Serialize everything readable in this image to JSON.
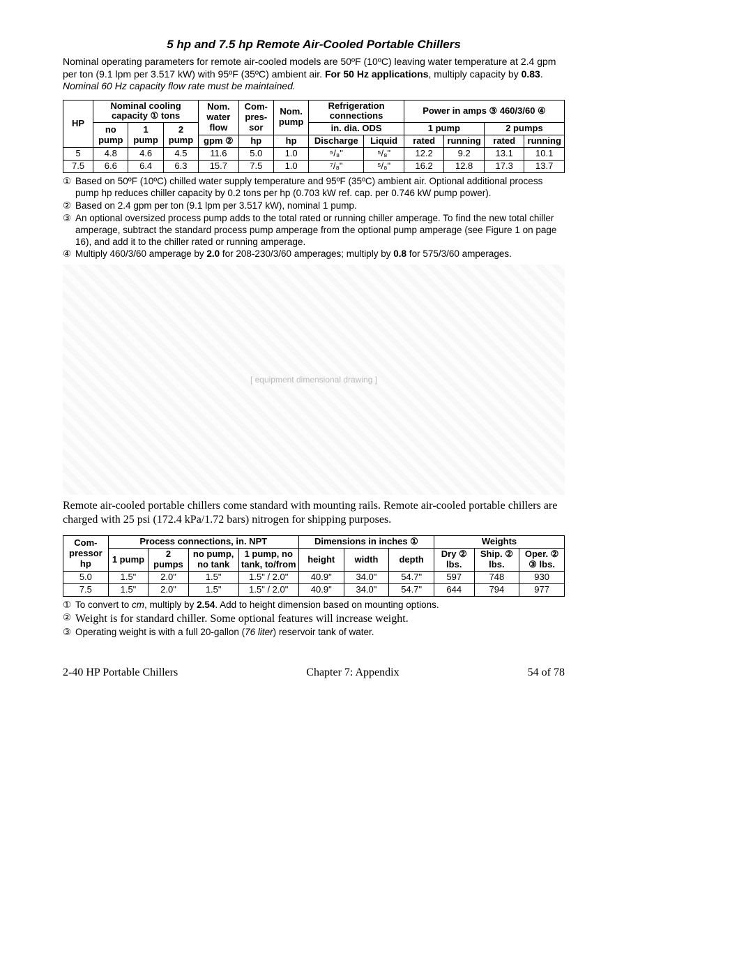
{
  "title": "5 hp and 7.5 hp Remote Air-Cooled Portable Chillers",
  "intro_html": "Nominal operating parameters for remote air-cooled models are 50ºF (10ºC) leaving water temperature at 2.4 gpm per ton (9.1 lpm per 3.517 kW) with 95ºF (35ºC) ambient air. <b>For 50 Hz applications</b>, multiply capacity by <b>0.83</b>. <span class=\"ital\">Nominal 60 Hz capacity flow rate must be maintained.</span>",
  "t1": {
    "top": {
      "hp": "HP",
      "nom_cooling": "Nominal cooling capacity ① tons",
      "nom_water": "Nom. water flow",
      "compressor": "Com- pres- sor",
      "nom_pump": "Nom. pump",
      "refrig": "Refrigeration connections",
      "power": "Power in amps ③ 460/3/60 ④"
    },
    "sub": {
      "no_pump": "no pump",
      "one_pump": "1 pump",
      "two_pump": "2 pump",
      "gpm": "gpm ②",
      "hp1": "hp",
      "hp2": "hp",
      "in_dia": "in. dia. ODS",
      "discharge": "Discharge",
      "liquid": "Liquid",
      "pump1": "1 pump",
      "pumps2": "2 pumps",
      "rated": "rated",
      "running": "running"
    },
    "rows": [
      {
        "hp": "5",
        "np": "4.8",
        "p1": "4.6",
        "p2": "4.5",
        "gpm": "11.6",
        "chp": "5.0",
        "php": "1.0",
        "disch": "⁵/₈\"",
        "liq": "⁵/₈\"",
        "r1": "12.2",
        "ru1": "9.2",
        "r2": "13.1",
        "ru2": "10.1"
      },
      {
        "hp": "7.5",
        "np": "6.6",
        "p1": "6.4",
        "p2": "6.3",
        "gpm": "15.7",
        "chp": "7.5",
        "php": "1.0",
        "disch": "⁷/₈\"",
        "liq": "⁵/₈\"",
        "r1": "16.2",
        "ru1": "12.8",
        "r2": "17.3",
        "ru2": "13.7"
      }
    ]
  },
  "notes1": [
    {
      "n": "①",
      "t": "Based on 50ºF (10ºC) chilled water supply temperature and 95ºF (35ºC) ambient air. Optional additional process pump hp reduces chiller capacity by 0.2 tons per hp (0.703 kW ref. cap. per 0.746 kW pump power)."
    },
    {
      "n": "②",
      "t": "Based on 2.4 gpm per ton (9.1 lpm per 3.517 kW), nominal 1 pump."
    },
    {
      "n": "③",
      "t": "An optional oversized process pump adds to the total rated or running chiller amperage. To find the new total chiller amperage, subtract the standard process pump amperage from the optional pump amperage (see Figure 1 on page 16), and add it to the chiller rated or running amperage."
    },
    {
      "n": "④",
      "t": "Multiply 460/3/60 amperage by <b>2.0</b> for 208-230/3/60 amperages; multiply by <b>0.8</b> for 575/3/60 amperages."
    }
  ],
  "para1": "Remote air-cooled portable chillers come standard with mounting rails. Remote air-cooled portable chillers are charged with 25 psi (172.4 kPa/1.72 bars) nitrogen for shipping purposes.",
  "t2": {
    "top": {
      "comp": "Com- pressor hp",
      "proc": "Process connections, in. NPT",
      "dim": "Dimensions in inches ①",
      "wt": "Weights"
    },
    "sub": {
      "p1": "1 pump",
      "p2": "2 pumps",
      "npnt": "no pump, no tank",
      "p1nt": "1 pump, no tank, to/from",
      "h": "height",
      "w": "width",
      "d": "depth",
      "dry": "Dry ② lbs.",
      "ship": "Ship. ② lbs.",
      "oper": "Oper. ② ③ lbs."
    },
    "rows": [
      {
        "hp": "5.0",
        "p1": "1.5\"",
        "p2": "2.0\"",
        "npnt": "1.5\"",
        "p1nt": "1.5\" / 2.0\"",
        "h": "40.9\"",
        "w": "34.0\"",
        "d": "54.7\"",
        "dry": "597",
        "ship": "748",
        "oper": "930"
      },
      {
        "hp": "7.5",
        "p1": "1.5\"",
        "p2": "2.0\"",
        "npnt": "1.5\"",
        "p1nt": "1.5\" / 2.0\"",
        "h": "40.9\"",
        "w": "34.0\"",
        "d": "54.7\"",
        "dry": "644",
        "ship": "794",
        "oper": "977"
      }
    ]
  },
  "notes2": [
    {
      "n": "①",
      "t": "To convert to <i>cm</i>, multiply by <b>2.54</b>. Add to height dimension based on mounting options."
    },
    {
      "n": "②",
      "t": "<span style=\"font-family:Times New Roman,serif;font-size:16px\">Weight is for standard chiller. Some optional features will increase weight.</span>"
    },
    {
      "n": "③",
      "t": "Operating weight is with a full 20-gallon (<i>76 liter</i>) reservoir tank of water."
    }
  ],
  "footer": {
    "left": "2-40 HP Portable Chillers",
    "center": "Chapter 7: Appendix",
    "right": "54 of 78"
  }
}
